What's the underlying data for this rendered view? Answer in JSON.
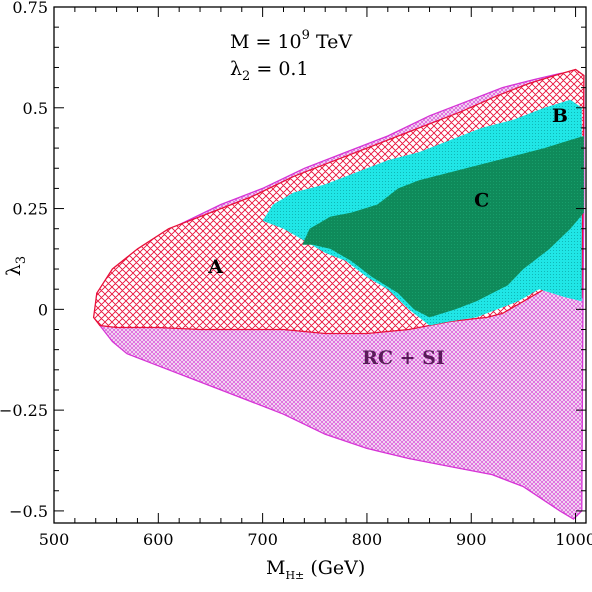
{
  "chart_data": {
    "type": "area",
    "title": "",
    "xlabel_main": "M",
    "xlabel_sub": "H±",
    "xlabel_unit": " (GeV)",
    "ylabel_main": "λ",
    "ylabel_sub": "3",
    "xlim": [
      500,
      1010
    ],
    "ylim": [
      -0.53,
      0.75
    ],
    "xticks": [
      500,
      600,
      700,
      800,
      900,
      1000
    ],
    "xtick_labels": [
      "500",
      "600",
      "700",
      "800",
      "900",
      "1000"
    ],
    "yticks": [
      -0.5,
      -0.25,
      0,
      0.25,
      0.5,
      0.75
    ],
    "ytick_labels": [
      "−0.5",
      "−0.25",
      "0",
      "0.25",
      "0.5",
      "0.75"
    ],
    "annotations": {
      "mass_line_prefix": "M = 10",
      "mass_line_exp": "9",
      "mass_line_suffix": " TeV",
      "lambda_line_main": "λ",
      "lambda_line_sub": "2",
      "lambda_line_suffix": " = 0.1"
    },
    "colors": {
      "rc_si": "#d633d6",
      "region_a": "#e8103a",
      "region_b": "#20e6e6",
      "region_c": "#0f8a5a",
      "rc_si_label": "#5a1a5a"
    },
    "series": [
      {
        "name": "RC + SI",
        "label_at": [
          835,
          -0.135
        ],
        "outline": [
          [
            539,
            -0.02
          ],
          [
            541,
            0.04
          ],
          [
            556,
            0.09
          ],
          [
            570,
            0.12
          ],
          [
            590,
            0.16
          ],
          [
            620,
            0.21
          ],
          [
            660,
            0.26
          ],
          [
            700,
            0.3
          ],
          [
            740,
            0.35
          ],
          [
            780,
            0.39
          ],
          [
            820,
            0.43
          ],
          [
            860,
            0.48
          ],
          [
            900,
            0.52
          ],
          [
            930,
            0.55
          ],
          [
            960,
            0.57
          ],
          [
            985,
            0.585
          ],
          [
            1000,
            0.59
          ],
          [
            1008,
            0.58
          ],
          [
            1008,
            0.3
          ],
          [
            1007,
            0.0
          ],
          [
            1006,
            -0.5
          ],
          [
            998,
            -0.52
          ],
          [
            985,
            -0.5
          ],
          [
            950,
            -0.44
          ],
          [
            920,
            -0.41
          ],
          [
            880,
            -0.39
          ],
          [
            840,
            -0.37
          ],
          [
            800,
            -0.345
          ],
          [
            760,
            -0.31
          ],
          [
            720,
            -0.26
          ],
          [
            680,
            -0.22
          ],
          [
            640,
            -0.18
          ],
          [
            600,
            -0.14
          ],
          [
            570,
            -0.11
          ],
          [
            556,
            -0.08
          ],
          [
            544,
            -0.04
          ]
        ]
      },
      {
        "name": "A",
        "label_at": [
          655,
          0.09
        ],
        "outline": [
          [
            538,
            -0.02
          ],
          [
            541,
            0.04
          ],
          [
            556,
            0.1
          ],
          [
            580,
            0.15
          ],
          [
            610,
            0.2
          ],
          [
            650,
            0.24
          ],
          [
            690,
            0.28
          ],
          [
            730,
            0.33
          ],
          [
            770,
            0.37
          ],
          [
            810,
            0.41
          ],
          [
            850,
            0.45
          ],
          [
            890,
            0.49
          ],
          [
            925,
            0.53
          ],
          [
            955,
            0.56
          ],
          [
            980,
            0.58
          ],
          [
            1000,
            0.595
          ],
          [
            1008,
            0.58
          ],
          [
            1006,
            0.03
          ],
          [
            990,
            0.04
          ],
          [
            970,
            0.05
          ],
          [
            950,
            0.02
          ],
          [
            930,
            -0.01
          ],
          [
            915,
            -0.02
          ],
          [
            880,
            -0.03
          ],
          [
            840,
            -0.05
          ],
          [
            800,
            -0.06
          ],
          [
            760,
            -0.06
          ],
          [
            720,
            -0.05
          ],
          [
            680,
            -0.05
          ],
          [
            640,
            -0.05
          ],
          [
            600,
            -0.045
          ],
          [
            560,
            -0.045
          ],
          [
            544,
            -0.04
          ]
        ]
      },
      {
        "name": "B",
        "label_at": [
          985,
          0.465
        ],
        "outline": [
          [
            700,
            0.22
          ],
          [
            710,
            0.26
          ],
          [
            730,
            0.29
          ],
          [
            760,
            0.31
          ],
          [
            790,
            0.34
          ],
          [
            820,
            0.37
          ],
          [
            850,
            0.39
          ],
          [
            880,
            0.42
          ],
          [
            910,
            0.45
          ],
          [
            940,
            0.47
          ],
          [
            970,
            0.5
          ],
          [
            995,
            0.52
          ],
          [
            1006,
            0.5
          ],
          [
            1006,
            0.02
          ],
          [
            990,
            0.03
          ],
          [
            965,
            0.05
          ],
          [
            945,
            0.02
          ],
          [
            925,
            0.0
          ],
          [
            905,
            -0.02
          ],
          [
            880,
            -0.03
          ],
          [
            860,
            -0.04
          ],
          [
            840,
            0.0
          ],
          [
            820,
            0.05
          ],
          [
            800,
            0.08
          ],
          [
            780,
            0.12
          ],
          [
            760,
            0.14
          ],
          [
            740,
            0.17
          ],
          [
            720,
            0.2
          ]
        ]
      },
      {
        "name": "C",
        "label_at": [
          910,
          0.255
        ],
        "outline": [
          [
            738,
            0.16
          ],
          [
            745,
            0.2
          ],
          [
            765,
            0.23
          ],
          [
            785,
            0.24
          ],
          [
            810,
            0.26
          ],
          [
            830,
            0.3
          ],
          [
            850,
            0.32
          ],
          [
            880,
            0.34
          ],
          [
            910,
            0.36
          ],
          [
            940,
            0.38
          ],
          [
            970,
            0.4
          ],
          [
            995,
            0.42
          ],
          [
            1008,
            0.43
          ],
          [
            1008,
            0.24
          ],
          [
            995,
            0.2
          ],
          [
            975,
            0.15
          ],
          [
            960,
            0.12
          ],
          [
            950,
            0.1
          ],
          [
            935,
            0.06
          ],
          [
            920,
            0.04
          ],
          [
            905,
            0.02
          ],
          [
            885,
            0.0
          ],
          [
            860,
            -0.02
          ],
          [
            845,
            0.0
          ],
          [
            830,
            0.04
          ],
          [
            805,
            0.08
          ],
          [
            785,
            0.12
          ],
          [
            765,
            0.15
          ],
          [
            748,
            0.16
          ]
        ]
      }
    ]
  }
}
